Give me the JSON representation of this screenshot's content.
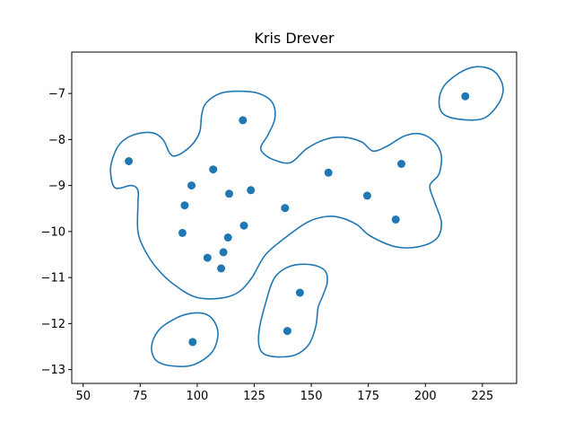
{
  "chart_data": {
    "type": "scatter",
    "title": "Kris Drever",
    "xlabel": "",
    "ylabel": "",
    "xlim": [
      45,
      240
    ],
    "ylim": [
      -13.3,
      -6.1
    ],
    "xticks": [
      50,
      75,
      100,
      125,
      150,
      175,
      200,
      225
    ],
    "xtick_labels": [
      "50",
      "75",
      "100",
      "125",
      "150",
      "175",
      "200",
      "225"
    ],
    "yticks": [
      -7,
      -8,
      -9,
      -10,
      -11,
      -12,
      -13
    ],
    "ytick_labels": [
      "−7",
      "−8",
      "−9",
      "−10",
      "−11",
      "−12",
      "−13"
    ],
    "grid": false,
    "color": "#1f77b4",
    "points": [
      {
        "x": 70,
        "y": -8.47
      },
      {
        "x": 120,
        "y": -7.58
      },
      {
        "x": 107,
        "y": -8.65
      },
      {
        "x": 97.5,
        "y": -9.0
      },
      {
        "x": 114,
        "y": -9.18
      },
      {
        "x": 123.5,
        "y": -9.1
      },
      {
        "x": 94.5,
        "y": -9.43
      },
      {
        "x": 138.5,
        "y": -9.49
      },
      {
        "x": 120.5,
        "y": -9.87
      },
      {
        "x": 93.5,
        "y": -10.03
      },
      {
        "x": 113.5,
        "y": -10.13
      },
      {
        "x": 111.5,
        "y": -10.45
      },
      {
        "x": 104.5,
        "y": -10.57
      },
      {
        "x": 110.5,
        "y": -10.8
      },
      {
        "x": 157.5,
        "y": -8.72
      },
      {
        "x": 174.5,
        "y": -9.22
      },
      {
        "x": 189.5,
        "y": -8.53
      },
      {
        "x": 187,
        "y": -9.74
      },
      {
        "x": 217.5,
        "y": -7.06
      },
      {
        "x": 145,
        "y": -11.33
      },
      {
        "x": 139.5,
        "y": -12.16
      },
      {
        "x": 98,
        "y": -12.4
      }
    ],
    "contours": [
      [
        [
          62,
          -8.7
        ],
        [
          63,
          -8.4
        ],
        [
          66,
          -8.1
        ],
        [
          72,
          -7.9
        ],
        [
          80,
          -7.85
        ],
        [
          85,
          -8.0
        ],
        [
          88,
          -8.3
        ],
        [
          91,
          -8.35
        ],
        [
          97,
          -8.15
        ],
        [
          101,
          -7.85
        ],
        [
          102,
          -7.45
        ],
        [
          104,
          -7.2
        ],
        [
          110,
          -7.0
        ],
        [
          118,
          -6.95
        ],
        [
          127,
          -7.0
        ],
        [
          133,
          -7.2
        ],
        [
          134,
          -7.55
        ],
        [
          131,
          -7.9
        ],
        [
          128,
          -8.15
        ],
        [
          129,
          -8.3
        ],
        [
          134,
          -8.45
        ],
        [
          141,
          -8.5
        ],
        [
          148,
          -8.2
        ],
        [
          156,
          -8.0
        ],
        [
          164,
          -7.95
        ],
        [
          172,
          -8.05
        ],
        [
          177,
          -8.25
        ],
        [
          183,
          -8.15
        ],
        [
          191,
          -7.92
        ],
        [
          198,
          -7.88
        ],
        [
          204,
          -8.05
        ],
        [
          207,
          -8.35
        ],
        [
          206,
          -8.75
        ],
        [
          202,
          -9.0
        ],
        [
          204,
          -9.35
        ],
        [
          207,
          -9.8
        ],
        [
          205,
          -10.15
        ],
        [
          197,
          -10.33
        ],
        [
          187,
          -10.33
        ],
        [
          176,
          -10.1
        ],
        [
          170,
          -9.85
        ],
        [
          163,
          -9.7
        ],
        [
          157,
          -9.67
        ],
        [
          149,
          -9.78
        ],
        [
          140,
          -10.08
        ],
        [
          130,
          -10.5
        ],
        [
          124,
          -11.0
        ],
        [
          118,
          -11.32
        ],
        [
          110,
          -11.45
        ],
        [
          99,
          -11.42
        ],
        [
          89,
          -11.12
        ],
        [
          82,
          -10.78
        ],
        [
          77,
          -10.4
        ],
        [
          74,
          -10.0
        ],
        [
          74,
          -9.4
        ],
        [
          74,
          -9.1
        ],
        [
          71,
          -9.0
        ],
        [
          64,
          -9.05
        ],
        [
          62,
          -8.7
        ]
      ],
      [
        [
          215,
          -7.56
        ],
        [
          208,
          -7.45
        ],
        [
          206,
          -7.2
        ],
        [
          208,
          -6.85
        ],
        [
          215,
          -6.55
        ],
        [
          222,
          -6.42
        ],
        [
          229,
          -6.48
        ],
        [
          233,
          -6.7
        ],
        [
          234,
          -6.98
        ],
        [
          231,
          -7.3
        ],
        [
          225,
          -7.55
        ],
        [
          215,
          -7.56
        ]
      ],
      [
        [
          128,
          -12.6
        ],
        [
          127,
          -12.2
        ],
        [
          130,
          -11.55
        ],
        [
          134,
          -11.0
        ],
        [
          141,
          -10.75
        ],
        [
          150,
          -10.72
        ],
        [
          156,
          -10.85
        ],
        [
          157,
          -11.1
        ],
        [
          155,
          -11.4
        ],
        [
          153,
          -11.65
        ],
        [
          152,
          -12.05
        ],
        [
          149,
          -12.45
        ],
        [
          143,
          -12.68
        ],
        [
          134,
          -12.72
        ],
        [
          128,
          -12.6
        ]
      ],
      [
        [
          89,
          -12.92
        ],
        [
          82,
          -12.8
        ],
        [
          80,
          -12.5
        ],
        [
          83,
          -12.15
        ],
        [
          90,
          -11.9
        ],
        [
          97,
          -11.78
        ],
        [
          104,
          -11.8
        ],
        [
          108,
          -12.0
        ],
        [
          109,
          -12.3
        ],
        [
          106,
          -12.65
        ],
        [
          98,
          -12.9
        ],
        [
          89,
          -12.92
        ]
      ]
    ]
  }
}
